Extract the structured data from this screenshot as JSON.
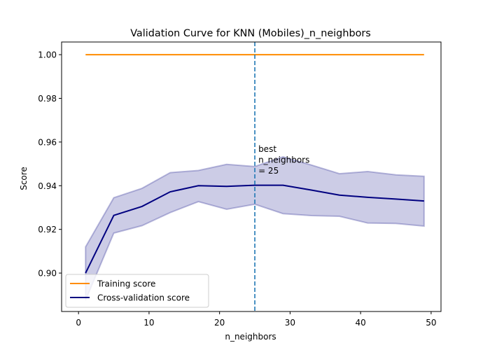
{
  "chart_data": {
    "type": "line",
    "title": "Validation Curve for KNN (Mobiles)_n_neighbors",
    "xlabel": "n_neighbors",
    "ylabel": "Score",
    "xlim": [
      -2.4,
      51.4
    ],
    "ylim": [
      0.8824,
      1.0058
    ],
    "x_ticks": [
      0,
      10,
      20,
      30,
      40,
      50
    ],
    "x_tick_labels": [
      "0",
      "10",
      "20",
      "30",
      "40",
      "50"
    ],
    "y_ticks": [
      0.9,
      0.92,
      0.94,
      0.96,
      0.98,
      1.0
    ],
    "y_tick_labels": [
      "0.90",
      "0.92",
      "0.94",
      "0.96",
      "0.98",
      "1.00"
    ],
    "grid": false,
    "legend_position": "bottom-left",
    "x": [
      1,
      5,
      9,
      13,
      17,
      21,
      25,
      29,
      33,
      37,
      41,
      45,
      49
    ],
    "series": [
      {
        "name": "Training score",
        "color": "#ff8c00",
        "values": [
          1.0,
          1.0,
          1.0,
          1.0,
          1.0,
          1.0,
          1.0,
          1.0,
          1.0,
          1.0,
          1.0,
          1.0,
          1.0
        ]
      },
      {
        "name": "Cross-validation score",
        "color": "#000080",
        "band_color": "#000080",
        "values": [
          0.9,
          0.9264,
          0.9305,
          0.9372,
          0.94,
          0.9397,
          0.9402,
          0.9402,
          0.938,
          0.9357,
          0.9347,
          0.9339,
          0.933
        ],
        "upper": [
          0.912,
          0.9345,
          0.9388,
          0.946,
          0.947,
          0.9498,
          0.9488,
          0.9532,
          0.9495,
          0.9455,
          0.9465,
          0.945,
          0.9443
        ],
        "lower": [
          0.8876,
          0.9183,
          0.9217,
          0.9277,
          0.9327,
          0.9292,
          0.9315,
          0.9272,
          0.9263,
          0.926,
          0.9229,
          0.9227,
          0.9215
        ]
      }
    ],
    "best_line": {
      "x": 25,
      "color": "#1f77b4"
    },
    "annotation": {
      "x": 25.5,
      "y": 0.9555,
      "lines": [
        "best",
        "n_neighbors",
        "= 25"
      ]
    }
  }
}
